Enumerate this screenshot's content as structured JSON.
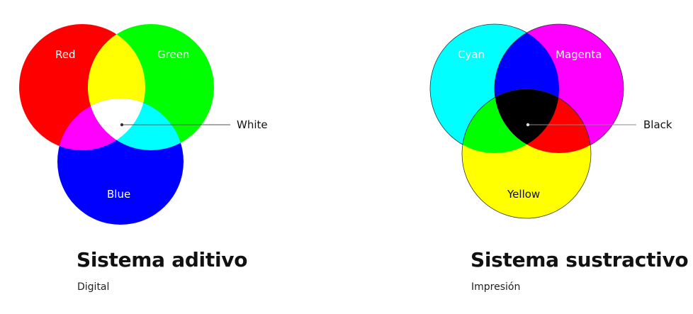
{
  "additive": {
    "circle_labels": {
      "red": "Red",
      "green": "Green",
      "blue": "Blue"
    },
    "center_label": "White",
    "title": "Sistema aditivo",
    "subtitle": "Digital",
    "colors": {
      "red": "#ff0000",
      "green": "#00ff00",
      "blue": "#0000ff",
      "red_green": "#ffff00",
      "red_blue": "#ff00ff",
      "green_blue": "#00ffff",
      "center": "#ffffff"
    }
  },
  "subtractive": {
    "circle_labels": {
      "cyan": "Cyan",
      "magenta": "Magenta",
      "yellow": "Yellow"
    },
    "center_label": "Black",
    "title": "Sistema sustractivo",
    "subtitle": "Impresión",
    "colors": {
      "cyan": "#00ffff",
      "magenta": "#ff00ff",
      "yellow": "#ffff00",
      "cyan_magenta": "#0000ff",
      "cyan_yellow": "#00ff00",
      "magenta_yellow": "#ff0000",
      "center": "#000000"
    }
  }
}
